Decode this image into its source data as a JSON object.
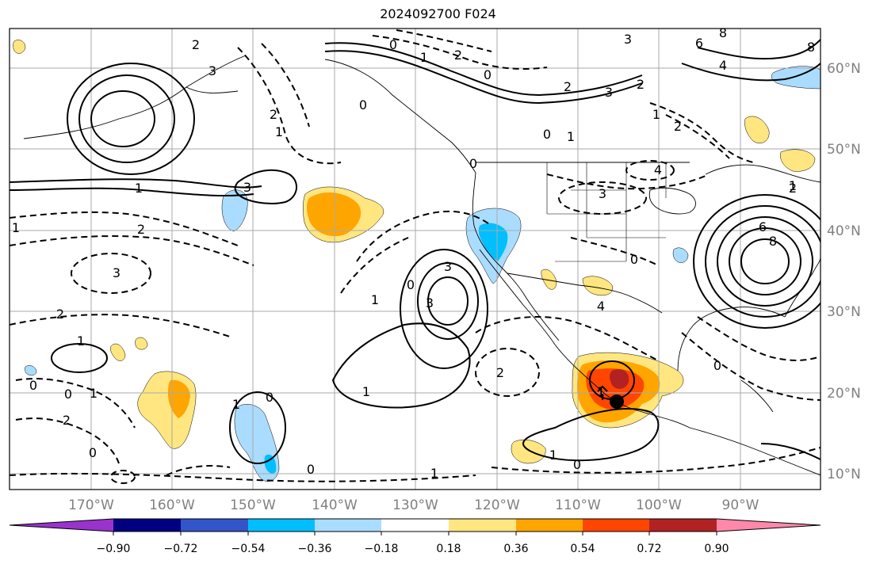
{
  "title": "2024092700 F024",
  "map": {
    "lon_labels": [
      "170°W",
      "160°W",
      "150°W",
      "140°W",
      "130°W",
      "120°W",
      "110°W",
      "100°W",
      "90°W"
    ],
    "lat_labels": [
      "60°N",
      "50°N",
      "40°N",
      "30°N",
      "20°N",
      "10°N"
    ],
    "contour_labels": [
      {
        "id": "c1",
        "text": "0"
      },
      {
        "id": "c2",
        "text": "1"
      },
      {
        "id": "c3",
        "text": "2"
      },
      {
        "id": "c4",
        "text": "0"
      },
      {
        "id": "c5",
        "text": "2"
      },
      {
        "id": "c6",
        "text": "3"
      },
      {
        "id": "c7",
        "text": "6"
      },
      {
        "id": "c8",
        "text": "8"
      },
      {
        "id": "c9",
        "text": "4"
      },
      {
        "id": "c10",
        "text": "3"
      },
      {
        "id": "c11",
        "text": "8"
      },
      {
        "id": "c12",
        "text": "2"
      },
      {
        "id": "c13",
        "text": "1"
      },
      {
        "id": "c14",
        "text": "2"
      },
      {
        "id": "c15",
        "text": "3"
      },
      {
        "id": "c16",
        "text": "2"
      },
      {
        "id": "c17",
        "text": "3"
      },
      {
        "id": "c18",
        "text": "2"
      },
      {
        "id": "c19",
        "text": "1"
      },
      {
        "id": "c20",
        "text": "0"
      },
      {
        "id": "c21",
        "text": "1"
      },
      {
        "id": "c22",
        "text": "2"
      },
      {
        "id": "c23",
        "text": "0"
      },
      {
        "id": "c24",
        "text": "3"
      },
      {
        "id": "c25",
        "text": "1"
      },
      {
        "id": "c26",
        "text": "3"
      },
      {
        "id": "c27",
        "text": "2"
      },
      {
        "id": "c28",
        "text": "1"
      },
      {
        "id": "c29",
        "text": "3"
      },
      {
        "id": "c30",
        "text": "0"
      },
      {
        "id": "c31",
        "text": "4"
      },
      {
        "id": "c32",
        "text": "1"
      },
      {
        "id": "c33",
        "text": "0"
      },
      {
        "id": "c34",
        "text": "1"
      },
      {
        "id": "c35",
        "text": "0"
      },
      {
        "id": "c36",
        "text": "6"
      },
      {
        "id": "c37",
        "text": "8"
      },
      {
        "id": "c38",
        "text": "1"
      },
      {
        "id": "c39",
        "text": "0"
      },
      {
        "id": "c40",
        "text": "2"
      },
      {
        "id": "c41",
        "text": "2"
      },
      {
        "id": "c42",
        "text": "3"
      },
      {
        "id": "c43",
        "text": "1"
      },
      {
        "id": "c44",
        "text": "0"
      },
      {
        "id": "c45",
        "text": "1"
      },
      {
        "id": "c46",
        "text": "2"
      },
      {
        "id": "c47",
        "text": "0"
      },
      {
        "id": "c48",
        "text": "1"
      },
      {
        "id": "c49",
        "text": "0"
      },
      {
        "id": "c50",
        "text": "0"
      },
      {
        "id": "c51",
        "text": "1"
      },
      {
        "id": "c52",
        "text": "1"
      },
      {
        "id": "c53",
        "text": "0"
      },
      {
        "id": "c54",
        "text": "1"
      },
      {
        "id": "c55",
        "text": "0"
      },
      {
        "id": "c56",
        "text": "4"
      }
    ]
  },
  "colorbar": {
    "colors": [
      "#9933cc",
      "#000080",
      "#3355cc",
      "#00bfff",
      "#aadcff",
      "#ffffff",
      "#ffe680",
      "#ffa500",
      "#ff4500",
      "#b22222",
      "#ff88aa"
    ],
    "tick_labels": [
      "−0.90",
      "−0.72",
      "−0.54",
      "−0.36",
      "−0.18",
      "0.18",
      "0.36",
      "0.54",
      "0.72",
      "0.90"
    ]
  }
}
